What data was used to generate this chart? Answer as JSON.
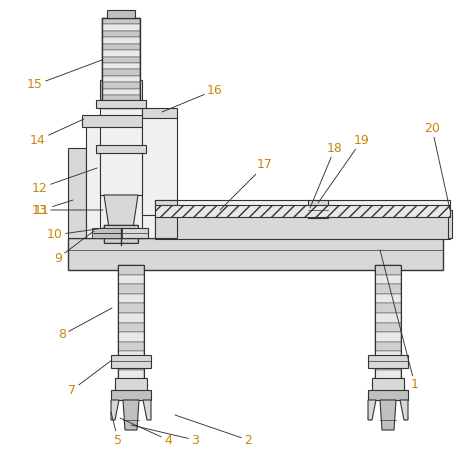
{
  "bg_color": "#ffffff",
  "line_color": "#333333",
  "label_color": "#c8860a",
  "lfs": 9,
  "fig_width": 4.74,
  "fig_height": 4.68,
  "dpi": 100
}
